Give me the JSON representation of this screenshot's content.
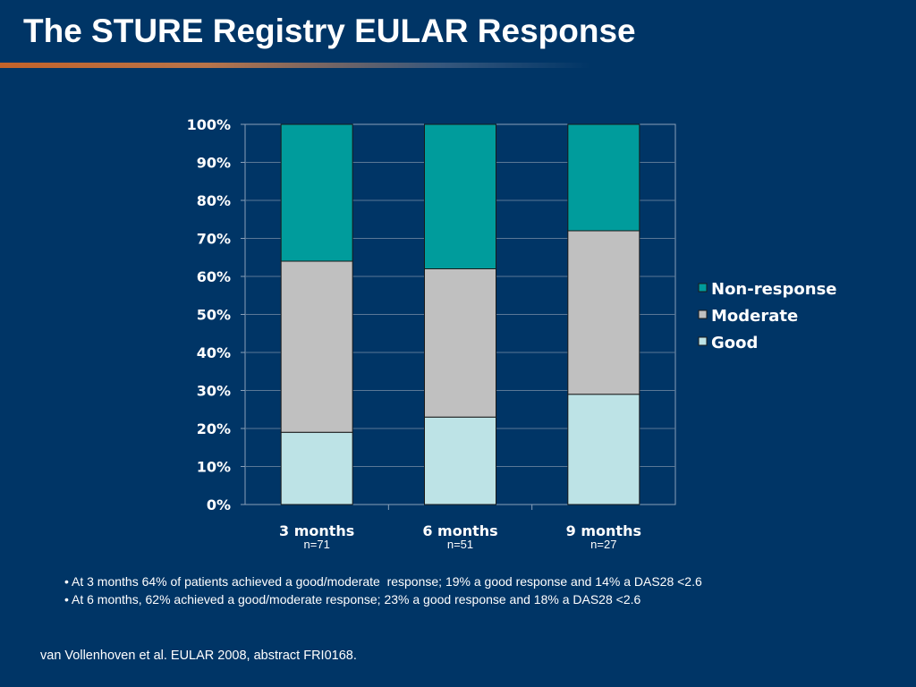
{
  "slide": {
    "title": "The STURE Registry EULAR Response",
    "bullets": [
      "• At 3 months 64% of patients achieved a good/moderate  response; 19% a good response and 14% a DAS28 <2.6",
      "• At 6 months, 62% achieved a good/moderate response; 23% a good response and 18% a DAS28 <2.6"
    ],
    "citation": "van Vollenhoven et al. EULAR 2008, abstract FRI0168."
  },
  "colors": {
    "background": "#003566",
    "non_response": "#009c9c",
    "moderate": "#c0c0c0",
    "good": "#bde3e6",
    "plot_area": "#003566",
    "gridline": "#5a7896"
  },
  "chart_data": {
    "type": "bar",
    "stacked": true,
    "categories": [
      "3 months",
      "6 months",
      "9 months"
    ],
    "category_sublabels": [
      "n=71",
      "n=51",
      "n=27"
    ],
    "series": [
      {
        "name": "Good",
        "values": [
          19,
          23,
          29
        ]
      },
      {
        "name": "Moderate",
        "values": [
          45,
          39,
          43
        ]
      },
      {
        "name": "Non-response",
        "values": [
          36,
          38,
          28
        ]
      }
    ],
    "yticks": [
      "0%",
      "10%",
      "20%",
      "30%",
      "40%",
      "50%",
      "60%",
      "70%",
      "80%",
      "90%",
      "100%"
    ],
    "ylim": [
      0,
      100
    ],
    "grid": true,
    "legend_position": "right",
    "legend_order": [
      "Non-response",
      "Moderate",
      "Good"
    ]
  }
}
